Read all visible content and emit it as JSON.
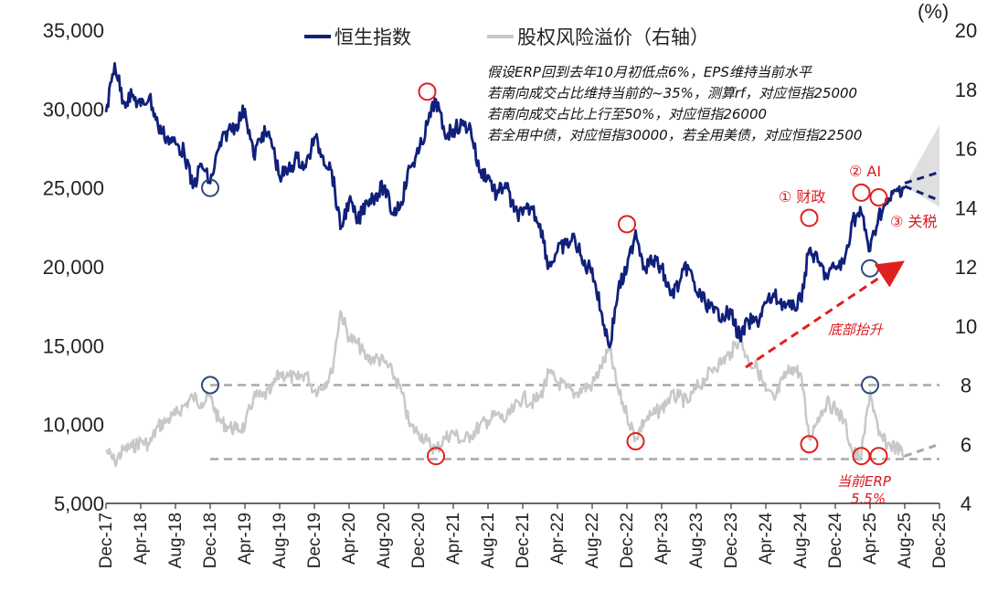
{
  "chart_data": {
    "type": "line",
    "title": "",
    "legend": [
      {
        "name": "恒生指数",
        "color": "#10207a"
      },
      {
        "name": "股权风险溢价（右轴）",
        "color": "#c8c8c8"
      }
    ],
    "y_left": {
      "min": 5000,
      "max": 35000,
      "ticks": [
        "5,000",
        "10,000",
        "15,000",
        "20,000",
        "25,000",
        "30,000",
        "35,000"
      ]
    },
    "y_right": {
      "min": 4,
      "max": 20,
      "unit": "(%)",
      "ticks": [
        "4",
        "6",
        "8",
        "10",
        "12",
        "14",
        "16",
        "18",
        "20"
      ]
    },
    "x_ticks": [
      "Dec-17",
      "Apr-18",
      "Aug-18",
      "Dec-18",
      "Apr-19",
      "Aug-19",
      "Dec-19",
      "Apr-20",
      "Aug-20",
      "Dec-20",
      "Apr-21",
      "Aug-21",
      "Dec-21",
      "Apr-22",
      "Aug-22",
      "Dec-22",
      "Apr-23",
      "Aug-23",
      "Dec-23",
      "Apr-24",
      "Aug-24",
      "Dec-24",
      "Apr-25",
      "Aug-25",
      "Dec-25"
    ],
    "series": [
      {
        "name": "恒生指数",
        "axis": "left",
        "color": "#10207a",
        "points": [
          [
            "Dec-17",
            29800
          ],
          [
            "Jan-18",
            32900
          ],
          [
            "Feb-18",
            30500
          ],
          [
            "Mar-18",
            30800
          ],
          [
            "Apr-18",
            30200
          ],
          [
            "May-18",
            30800
          ],
          [
            "Jun-18",
            28900
          ],
          [
            "Jul-18",
            28200
          ],
          [
            "Aug-18",
            27800
          ],
          [
            "Sep-18",
            27300
          ],
          [
            "Oct-18",
            25000
          ],
          [
            "Nov-18",
            26500
          ],
          [
            "Dec-18",
            25300
          ],
          [
            "Jan-19",
            27500
          ],
          [
            "Feb-19",
            28600
          ],
          [
            "Mar-19",
            29000
          ],
          [
            "Apr-19",
            30000
          ],
          [
            "May-19",
            27000
          ],
          [
            "Jun-19",
            28500
          ],
          [
            "Jul-19",
            28100
          ],
          [
            "Aug-19",
            25700
          ],
          [
            "Sep-19",
            26100
          ],
          [
            "Oct-19",
            26900
          ],
          [
            "Nov-19",
            26300
          ],
          [
            "Dec-19",
            28200
          ],
          [
            "Jan-20",
            27000
          ],
          [
            "Feb-20",
            26100
          ],
          [
            "Mar-20",
            22400
          ],
          [
            "Apr-20",
            24200
          ],
          [
            "May-20",
            22800
          ],
          [
            "Jun-20",
            24200
          ],
          [
            "Jul-20",
            24500
          ],
          [
            "Aug-20",
            25100
          ],
          [
            "Sep-20",
            23400
          ],
          [
            "Oct-20",
            24100
          ],
          [
            "Nov-20",
            26300
          ],
          [
            "Dec-20",
            27200
          ],
          [
            "Jan-21",
            29000
          ],
          [
            "Feb-21",
            30600
          ],
          [
            "Mar-21",
            28400
          ],
          [
            "Apr-21",
            28700
          ],
          [
            "May-21",
            29000
          ],
          [
            "Jun-21",
            28800
          ],
          [
            "Jul-21",
            26000
          ],
          [
            "Aug-21",
            25800
          ],
          [
            "Sep-21",
            24500
          ],
          [
            "Oct-21",
            25300
          ],
          [
            "Nov-21",
            23500
          ],
          [
            "Dec-21",
            23300
          ],
          [
            "Jan-22",
            23800
          ],
          [
            "Feb-22",
            22700
          ],
          [
            "Mar-22",
            20000
          ],
          [
            "Apr-22",
            21000
          ],
          [
            "May-22",
            21400
          ],
          [
            "Jun-22",
            21800
          ],
          [
            "Jul-22",
            20100
          ],
          [
            "Aug-22",
            19900
          ],
          [
            "Sep-22",
            17200
          ],
          [
            "Oct-22",
            14900
          ],
          [
            "Nov-22",
            18600
          ],
          [
            "Dec-22",
            19800
          ],
          [
            "Jan-23",
            22300
          ],
          [
            "Feb-23",
            20000
          ],
          [
            "Mar-23",
            20400
          ],
          [
            "Apr-23",
            19900
          ],
          [
            "May-23",
            18200
          ],
          [
            "Jun-23",
            18900
          ],
          [
            "Jul-23",
            20100
          ],
          [
            "Aug-23",
            18400
          ],
          [
            "Sep-23",
            17800
          ],
          [
            "Oct-23",
            17100
          ],
          [
            "Nov-23",
            17000
          ],
          [
            "Dec-23",
            17000
          ],
          [
            "Jan-24",
            15500
          ],
          [
            "Feb-24",
            16500
          ],
          [
            "Mar-24",
            16500
          ],
          [
            "Apr-24",
            17700
          ],
          [
            "May-24",
            18100
          ],
          [
            "Jun-24",
            17700
          ],
          [
            "Jul-24",
            17300
          ],
          [
            "Aug-24",
            17900
          ],
          [
            "Sep-24",
            21100
          ],
          [
            "Oct-24",
            20300
          ],
          [
            "Nov-24",
            19400
          ],
          [
            "Dec-24",
            20000
          ],
          [
            "Jan-25",
            20200
          ],
          [
            "Feb-25",
            23000
          ],
          [
            "Mar-25",
            23400
          ],
          [
            "Apr-25",
            21000
          ],
          [
            "May-25",
            23300
          ],
          [
            "Jun-25",
            24000
          ],
          [
            "Jul-25",
            24800
          ],
          [
            "Aug-25",
            25100
          ]
        ]
      },
      {
        "name": "股权风险溢价（右轴）",
        "axis": "right",
        "color": "#c8c8c8",
        "points": [
          [
            "Dec-17",
            5.8
          ],
          [
            "Jan-18",
            5.4
          ],
          [
            "Feb-18",
            5.8
          ],
          [
            "Mar-18",
            5.9
          ],
          [
            "Apr-18",
            6.1
          ],
          [
            "May-18",
            6.0
          ],
          [
            "Jun-18",
            6.6
          ],
          [
            "Jul-18",
            6.8
          ],
          [
            "Aug-18",
            7.0
          ],
          [
            "Sep-18",
            7.3
          ],
          [
            "Oct-18",
            7.6
          ],
          [
            "Nov-18",
            7.4
          ],
          [
            "Dec-18",
            7.6
          ],
          [
            "Jan-19",
            6.8
          ],
          [
            "Feb-19",
            6.6
          ],
          [
            "Mar-19",
            6.5
          ],
          [
            "Apr-19",
            6.6
          ],
          [
            "May-19",
            7.6
          ],
          [
            "Jun-19",
            7.6
          ],
          [
            "Jul-19",
            7.8
          ],
          [
            "Aug-19",
            8.4
          ],
          [
            "Sep-19",
            8.3
          ],
          [
            "Oct-19",
            8.2
          ],
          [
            "Nov-19",
            8.4
          ],
          [
            "Dec-19",
            7.8
          ],
          [
            "Jan-20",
            8.0
          ],
          [
            "Feb-20",
            8.4
          ],
          [
            "Mar-20",
            10.5
          ],
          [
            "Apr-20",
            9.6
          ],
          [
            "May-20",
            9.4
          ],
          [
            "Jun-20",
            8.9
          ],
          [
            "Jul-20",
            8.9
          ],
          [
            "Aug-20",
            8.8
          ],
          [
            "Sep-20",
            8.4
          ],
          [
            "Oct-20",
            7.8
          ],
          [
            "Nov-20",
            6.6
          ],
          [
            "Dec-20",
            6.4
          ],
          [
            "Jan-21",
            6.1
          ],
          [
            "Feb-21",
            5.8
          ],
          [
            "Mar-21",
            6.2
          ],
          [
            "Apr-21",
            6.4
          ],
          [
            "May-21",
            6.1
          ],
          [
            "Jun-21",
            6.3
          ],
          [
            "Jul-21",
            6.6
          ],
          [
            "Aug-21",
            6.8
          ],
          [
            "Sep-21",
            7.0
          ],
          [
            "Oct-21",
            6.8
          ],
          [
            "Nov-21",
            7.2
          ],
          [
            "Dec-21",
            7.6
          ],
          [
            "Jan-22",
            7.4
          ],
          [
            "Feb-22",
            7.6
          ],
          [
            "Mar-22",
            8.4
          ],
          [
            "Apr-22",
            8.1
          ],
          [
            "May-22",
            7.9
          ],
          [
            "Jun-22",
            7.7
          ],
          [
            "Jul-22",
            7.9
          ],
          [
            "Aug-22",
            8.0
          ],
          [
            "Sep-22",
            8.6
          ],
          [
            "Oct-22",
            9.2
          ],
          [
            "Nov-22",
            7.8
          ],
          [
            "Dec-22",
            7.0
          ],
          [
            "Jan-23",
            6.2
          ],
          [
            "Feb-23",
            6.8
          ],
          [
            "Mar-23",
            7.0
          ],
          [
            "Apr-23",
            7.2
          ],
          [
            "May-23",
            7.6
          ],
          [
            "Jun-23",
            7.6
          ],
          [
            "Jul-23",
            7.4
          ],
          [
            "Aug-23",
            7.9
          ],
          [
            "Sep-23",
            8.2
          ],
          [
            "Oct-23",
            8.6
          ],
          [
            "Nov-23",
            8.8
          ],
          [
            "Dec-23",
            9.1
          ],
          [
            "Jan-24",
            9.6
          ],
          [
            "Feb-24",
            8.8
          ],
          [
            "Mar-24",
            8.6
          ],
          [
            "Apr-24",
            7.8
          ],
          [
            "May-24",
            7.5
          ],
          [
            "Jun-24",
            8.2
          ],
          [
            "Jul-24",
            8.6
          ],
          [
            "Aug-24",
            8.4
          ],
          [
            "Sep-24",
            6.2
          ],
          [
            "Oct-24",
            6.9
          ],
          [
            "Nov-24",
            7.4
          ],
          [
            "Dec-24",
            7.2
          ],
          [
            "Jan-25",
            6.8
          ],
          [
            "Feb-25",
            5.7
          ],
          [
            "Mar-25",
            5.6
          ],
          [
            "Apr-25",
            7.8
          ],
          [
            "May-25",
            6.3
          ],
          [
            "Jun-25",
            6.0
          ],
          [
            "Jul-25",
            5.9
          ],
          [
            "Aug-25",
            5.6
          ]
        ]
      }
    ],
    "projection": {
      "dashed_up": [
        [
          "Aug-25",
          25300
        ],
        [
          "Dec-25",
          26000
        ]
      ],
      "dashed_down": [
        [
          "Aug-25",
          25100
        ],
        [
          "Dec-25",
          24200
        ]
      ],
      "erp_dashed": [
        [
          "Aug-25",
          5.6
        ],
        [
          "Dec-25",
          6.0
        ]
      ]
    },
    "reference_lines_right_axis": [
      8.0,
      5.5
    ],
    "annotations": {
      "note_lines": [
        "假设ERP回到去年10月初低点6%，EPS维持当前水平",
        "若南向成交占比维持当前的~35%，测算rf，对应恒指25000",
        "若南向成交占比上行至50%，对应恒指26000",
        "若全用中债，对应恒指30000，若全用美债，对应恒指22500"
      ],
      "label_caizheng": "① 财政",
      "label_ai": "② AI",
      "label_guanshui": "③ 关税",
      "label_dibu": "底部抬升",
      "label_erp_line1": "当前ERP",
      "label_erp_line2": "5.5%"
    },
    "circles": {
      "red_hsi": [
        [
          "Jan-21",
          31100
        ],
        [
          "Dec-22",
          22700
        ],
        [
          "Sep-24",
          23100
        ],
        [
          "Mar-25",
          24700
        ],
        [
          "May-25",
          24400
        ]
      ],
      "blue_hsi": [
        [
          "Dec-18",
          25000
        ],
        [
          "Apr-25",
          19900
        ]
      ],
      "red_erp": [
        [
          "Feb-21",
          5.6
        ],
        [
          "Jan-23",
          6.1
        ],
        [
          "Sep-24",
          6.0
        ],
        [
          "Mar-25",
          5.6
        ],
        [
          "May-25",
          5.6
        ]
      ],
      "blue_erp": [
        [
          "Dec-18",
          8.0
        ],
        [
          "Apr-25",
          8.0
        ]
      ]
    },
    "colors": {
      "hsi": "#10207a",
      "erp": "#c8c8c8",
      "circle_red": "#e0201f",
      "circle_blue": "#2b4a7a",
      "arrow": "#e0201f",
      "dashed_ref": "#a8a8a8",
      "fan": "#d9d9d9"
    }
  }
}
